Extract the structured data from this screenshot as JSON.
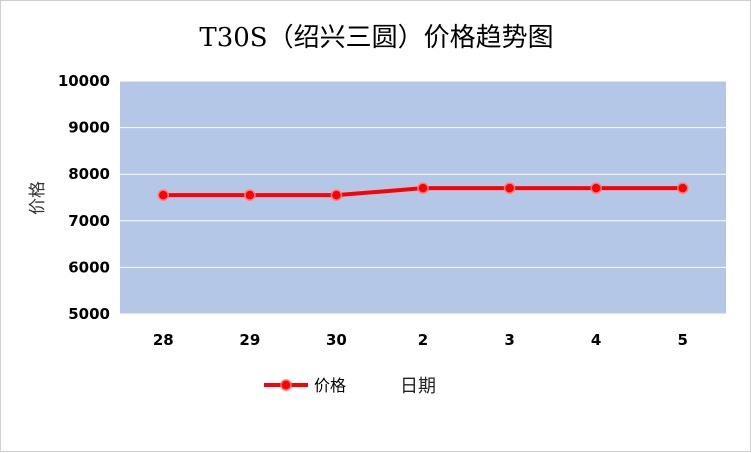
{
  "chart_data": {
    "type": "line",
    "title": "T30S（绍兴三圆）价格趋势图",
    "xlabel": "日期",
    "ylabel": "价格",
    "categories": [
      "28",
      "29",
      "30",
      "2",
      "3",
      "4",
      "5"
    ],
    "series": [
      {
        "name": "价格",
        "values": [
          7550,
          7550,
          7550,
          7700,
          7700,
          7700,
          7700
        ],
        "color": "#ff0000"
      }
    ],
    "ylim": [
      5000,
      10000
    ],
    "yticks": [
      "5000",
      "6000",
      "7000",
      "8000",
      "9000",
      "10000"
    ],
    "grid": true,
    "legend_position": "bottom",
    "plot_background": "#b4c7e7"
  }
}
